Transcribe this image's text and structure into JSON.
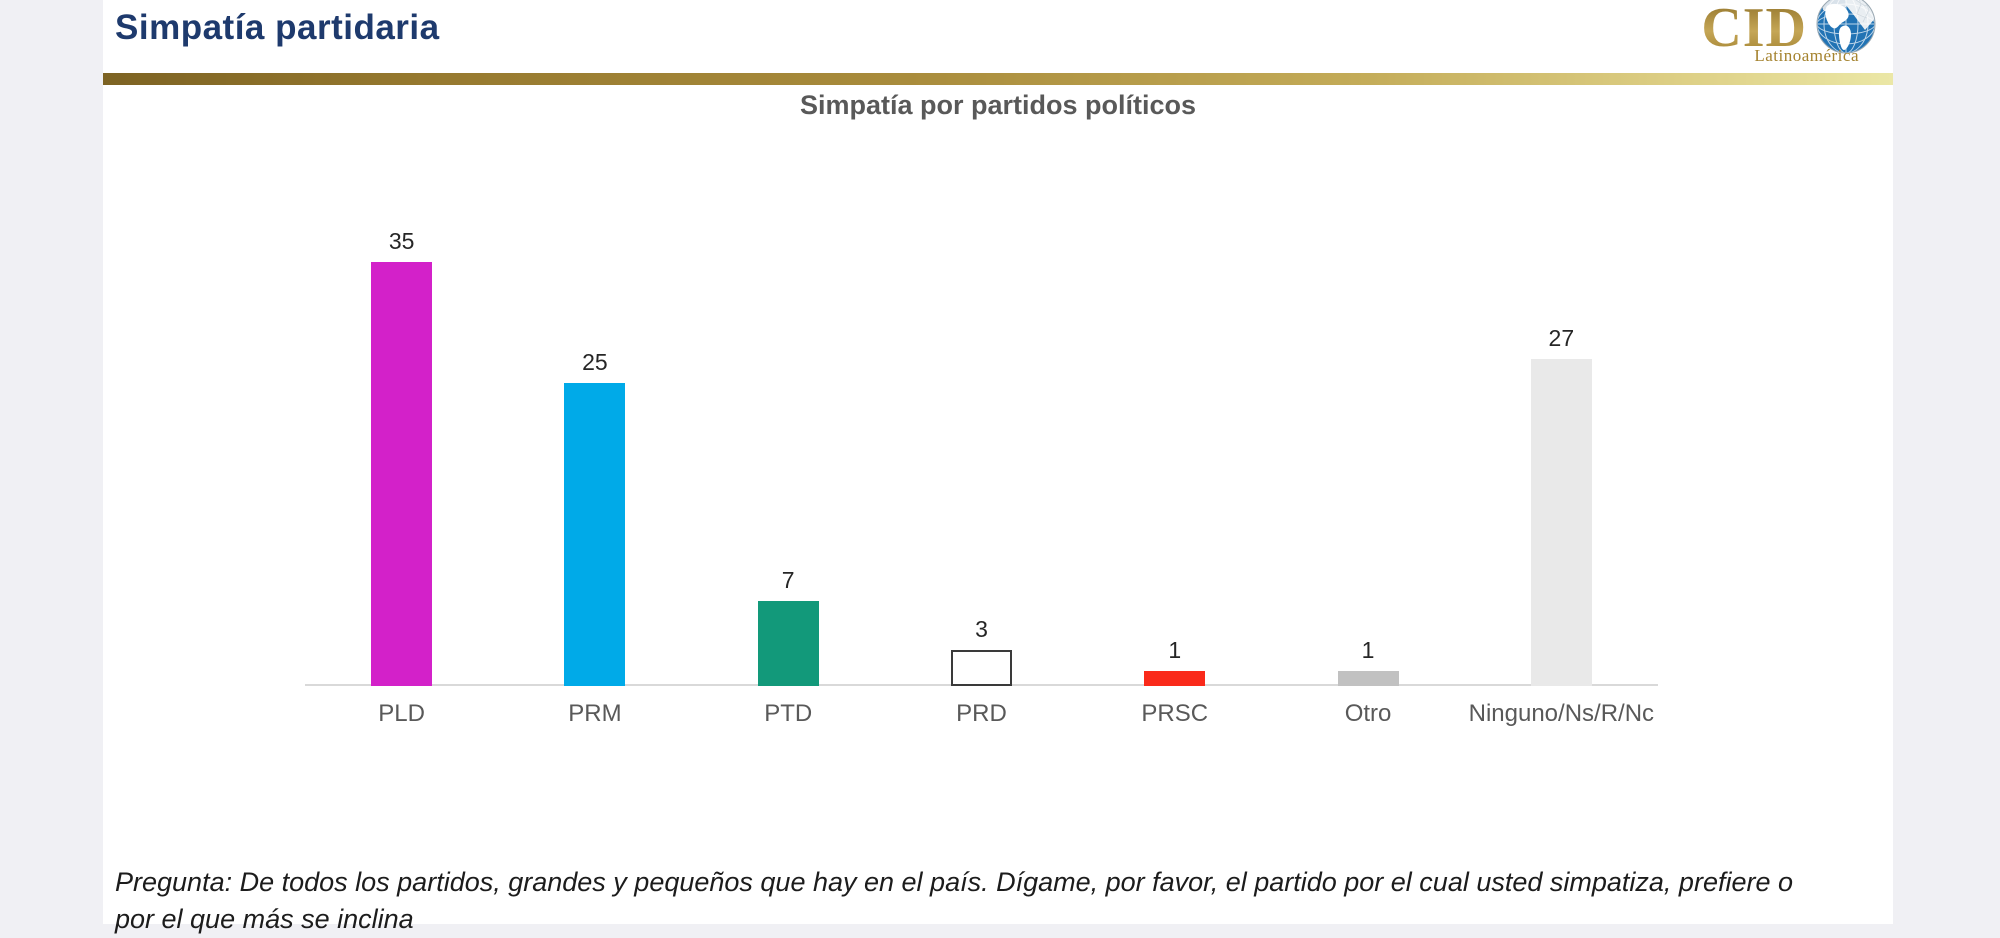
{
  "header": {
    "title": "Simpatía partidaria"
  },
  "logo": {
    "name": "CID",
    "subtitle": "Latinoamérica",
    "gold_color": "#a5832f",
    "globe_blue": "#2173b4"
  },
  "chart_data": {
    "type": "bar",
    "title": "Simpatía por partidos políticos",
    "categories": [
      "PLD",
      "PRM",
      "PTD",
      "PRD",
      "PRSC",
      "Otro",
      "Ninguno/Ns/R/Nc"
    ],
    "values": [
      35,
      25,
      7,
      3,
      1,
      1,
      27
    ],
    "colors": [
      "#d321c9",
      "#00aae8",
      "#12997a",
      "#ffffff",
      "#fa2a1a",
      "#c1c1c1",
      "#e9e9e9"
    ],
    "borders": [
      null,
      null,
      null,
      "#3a3a3a",
      null,
      null,
      null
    ],
    "value_labels_shown": true,
    "xlabel": "",
    "ylabel": "",
    "ylim": [
      0,
      38
    ],
    "grid": false,
    "legend": "none",
    "axis_line_color": "#d9d9d9",
    "label_color": "#595959",
    "value_label_color": "#262626"
  },
  "footer": {
    "lines": [
      "Pregunta: De todos los partidos, grandes y pequeños que hay en el país. Dígame, por favor, el partido por el cual usted simpatiza, prefiere o",
      "por el que más se inclina"
    ]
  },
  "theme": {
    "title_navy": "#1e3a6d",
    "chart_title_gray": "#595959",
    "gold_bar_left": "#7d6323",
    "gold_bar_right": "#ebe7a6",
    "page_background": "#f0f0f4",
    "slide_background": "#ffffff"
  }
}
